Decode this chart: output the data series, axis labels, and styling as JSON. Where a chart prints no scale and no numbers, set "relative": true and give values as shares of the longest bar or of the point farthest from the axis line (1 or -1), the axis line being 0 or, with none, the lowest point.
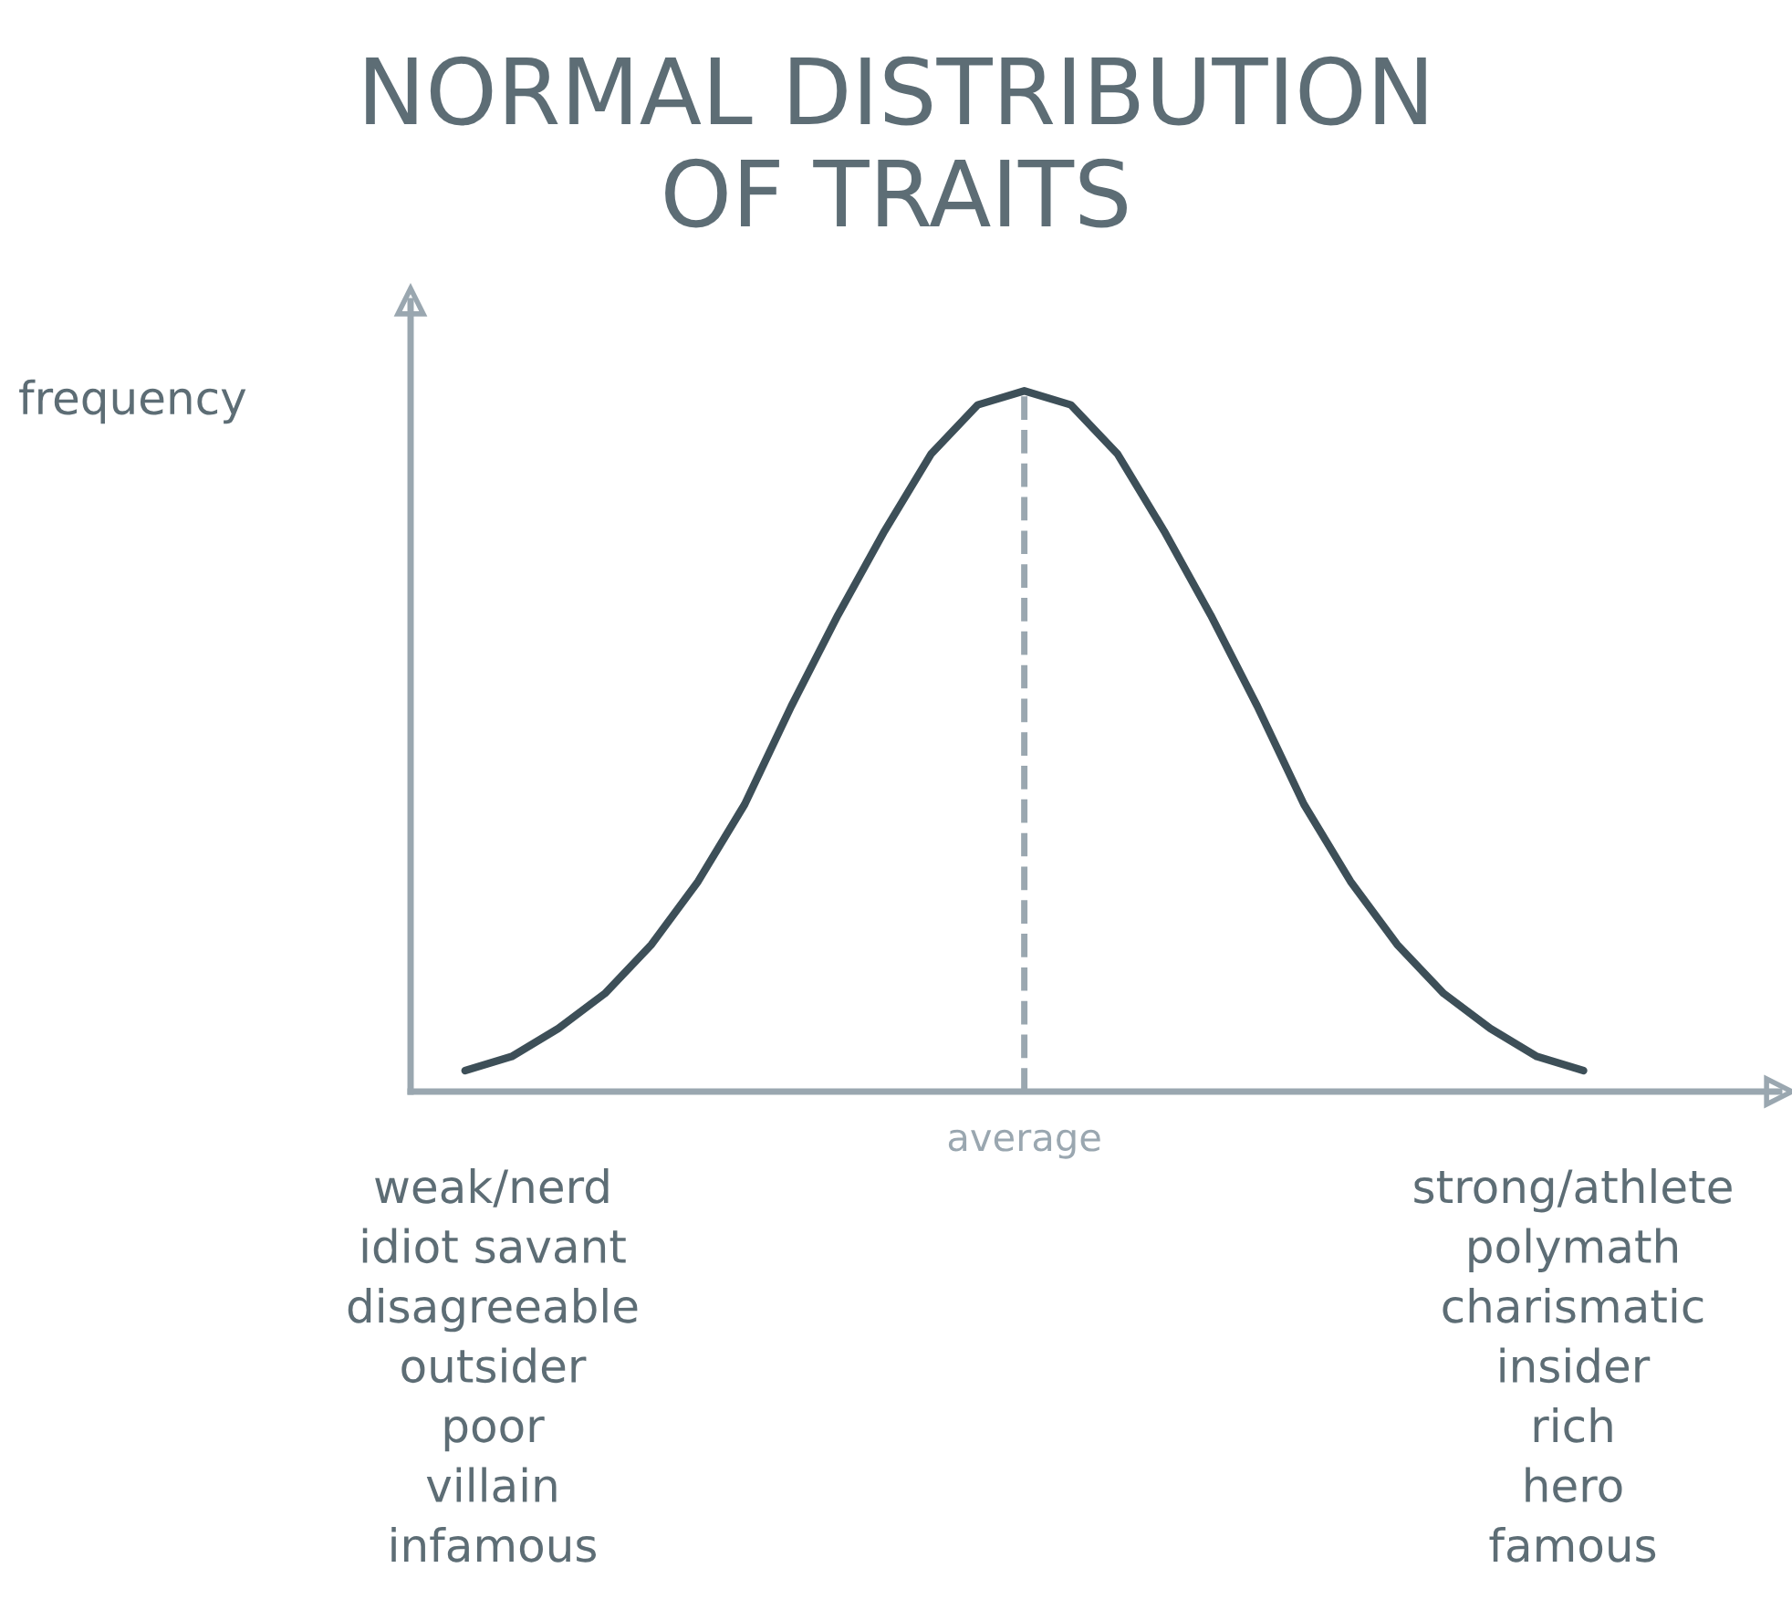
{
  "chart_data": {
    "type": "line",
    "title": "NORMAL DISTRIBUTION\nOF TRAITS",
    "ylabel": "frequency",
    "relative": true,
    "categories": [
      null,
      null,
      null,
      null,
      null,
      null,
      null,
      null,
      null,
      null,
      null,
      null,
      null,
      null,
      null,
      null,
      null,
      null,
      null,
      null,
      null,
      null,
      null,
      null,
      null
    ],
    "series": [
      {
        "color": "#3d4f58",
        "values": [
          0.03,
          0.05,
          0.09,
          0.14,
          0.21,
          0.3,
          0.41,
          0.55,
          0.68,
          0.8,
          0.91,
          0.98,
          1.0,
          0.98,
          0.91,
          0.8,
          0.68,
          0.55,
          0.41,
          0.3,
          0.21,
          0.14,
          0.09,
          0.05,
          0.03
        ]
      }
    ],
    "annotations": [
      "average",
      "weak/nerd\nidiot savant\ndisagreeable\noutsider\npoor\nvillain\ninfamous",
      "strong/athlete\npolymath\ncharismatic\ninsider\nrich\nhero\nfamous"
    ],
    "grid": false,
    "legend": false,
    "marker": "none",
    "line_style": "solid"
  }
}
